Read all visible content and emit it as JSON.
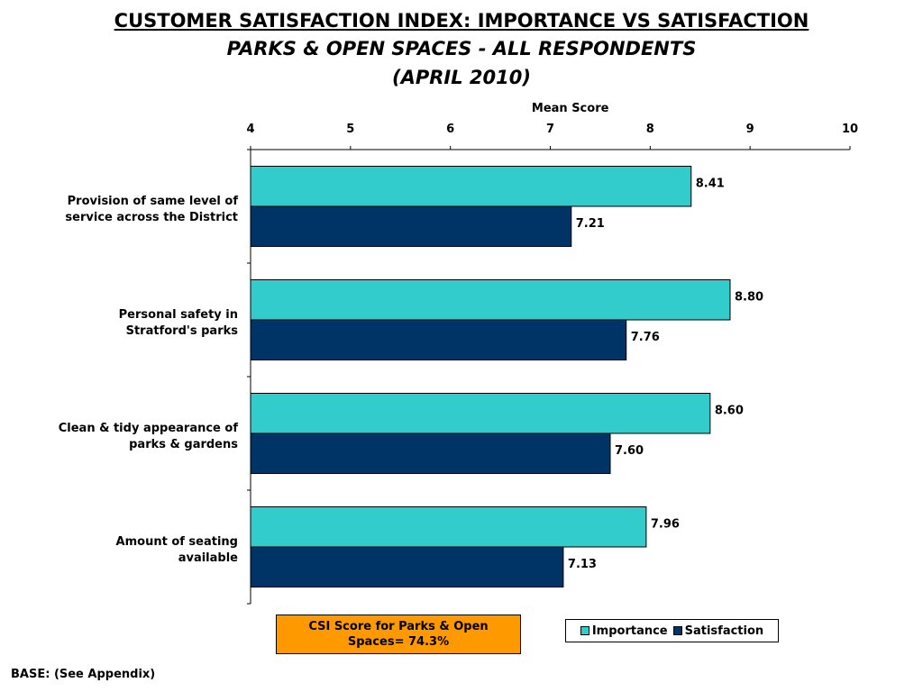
{
  "header": {
    "title": "CUSTOMER SATISFACTION INDEX: IMPORTANCE VS SATISFACTION",
    "subtitle_line1": "PARKS & OPEN SPACES - ALL RESPONDENTS",
    "subtitle_line2": "(APRIL 2010)"
  },
  "csi_box": {
    "line1": "CSI Score for Parks & Open",
    "line2": "Spaces= 74.3%"
  },
  "base_note": "BASE: (See Appendix)",
  "chart_data": {
    "type": "bar",
    "orientation": "horizontal",
    "xlabel": "Mean Score",
    "xlim": [
      4,
      10
    ],
    "xticks": [
      4,
      5,
      6,
      7,
      8,
      9,
      10
    ],
    "grid": false,
    "legend_position": "bottom-right",
    "categories": [
      [
        "Provision of same level of",
        "service across the District"
      ],
      [
        "Personal safety in",
        "Stratford's parks"
      ],
      [
        "Clean & tidy appearance of",
        "parks & gardens"
      ],
      [
        "Amount of seating",
        "available"
      ]
    ],
    "series": [
      {
        "name": "Importance",
        "color": "#33cccc",
        "values": [
          8.41,
          8.8,
          8.6,
          7.96
        ]
      },
      {
        "name": "Satisfaction",
        "color": "#003366",
        "values": [
          7.21,
          7.76,
          7.6,
          7.13
        ]
      }
    ]
  }
}
